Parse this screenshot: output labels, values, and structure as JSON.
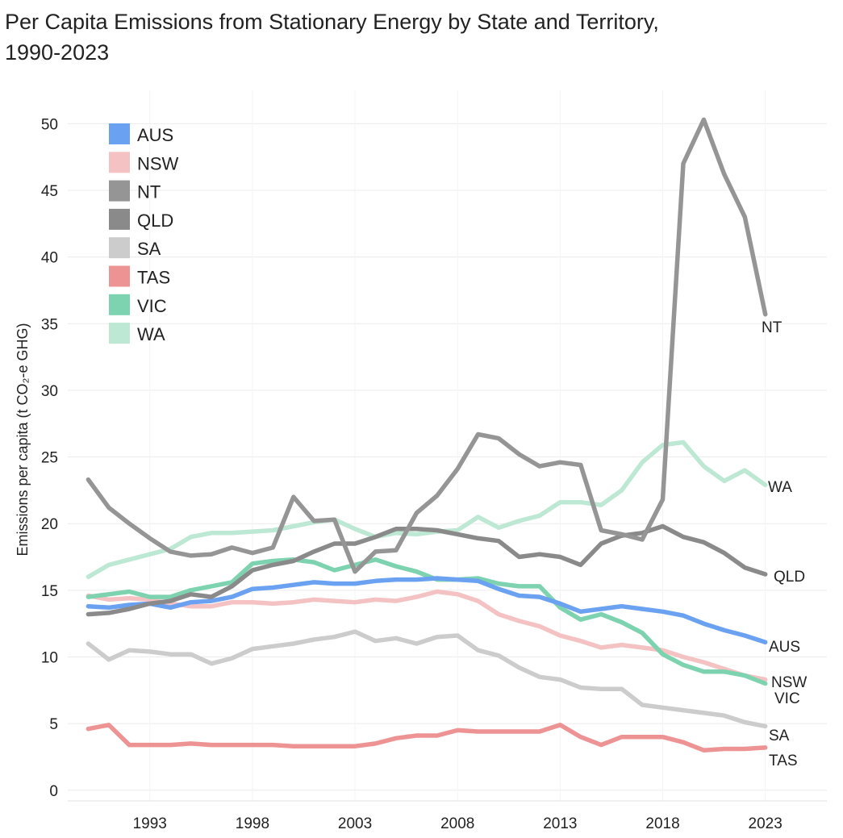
{
  "chart_data": {
    "type": "line",
    "title_line1": "Per Capita Emissions from Stationary Energy by State and Territory,",
    "title_line2": "1990-2023",
    "ylabel": "Emissions per capita (t CO₂-e GHG)",
    "xlabel": "",
    "xlim": [
      1989,
      2026
    ],
    "ylim": [
      -0.8,
      52.5
    ],
    "x_ticks": [
      1993,
      1998,
      2003,
      2008,
      2013,
      2018,
      2023
    ],
    "y_ticks": [
      0,
      5,
      10,
      15,
      20,
      25,
      30,
      35,
      40,
      45,
      50
    ],
    "grid": true,
    "legend_position": "top-left",
    "x": [
      1990,
      1991,
      1992,
      1993,
      1994,
      1995,
      1996,
      1997,
      1998,
      1999,
      2000,
      2001,
      2002,
      2003,
      2004,
      2005,
      2006,
      2007,
      2008,
      2009,
      2010,
      2011,
      2012,
      2013,
      2014,
      2015,
      2016,
      2017,
      2018,
      2019,
      2020,
      2021,
      2022,
      2023
    ],
    "series": [
      {
        "name": "AUS",
        "color": "#6aa1f0",
        "end_label": "AUS",
        "values": [
          13.8,
          13.7,
          13.9,
          14.0,
          13.7,
          14.1,
          14.2,
          14.5,
          15.1,
          15.2,
          15.4,
          15.6,
          15.5,
          15.5,
          15.7,
          15.8,
          15.8,
          15.9,
          15.8,
          15.7,
          15.1,
          14.6,
          14.5,
          14.0,
          13.4,
          13.6,
          13.8,
          13.6,
          13.4,
          13.1,
          12.5,
          12.0,
          11.6,
          11.1
        ]
      },
      {
        "name": "NSW",
        "color": "#f4c2c2",
        "end_label": "NSW",
        "values": [
          14.6,
          14.3,
          14.4,
          14.3,
          14.0,
          13.8,
          13.8,
          14.1,
          14.1,
          14.0,
          14.1,
          14.3,
          14.2,
          14.1,
          14.3,
          14.2,
          14.5,
          14.9,
          14.7,
          14.2,
          13.2,
          12.7,
          12.3,
          11.6,
          11.2,
          10.7,
          10.9,
          10.7,
          10.5,
          10.0,
          9.6,
          9.1,
          8.6,
          8.3
        ]
      },
      {
        "name": "NT",
        "color": "#959595",
        "end_label": "NT",
        "values": [
          23.3,
          21.2,
          20.0,
          18.9,
          17.9,
          17.6,
          17.7,
          18.2,
          17.8,
          18.2,
          22.0,
          20.2,
          20.3,
          16.4,
          17.9,
          18.0,
          20.8,
          22.1,
          24.1,
          26.7,
          26.4,
          25.2,
          24.3,
          24.6,
          24.4,
          19.5,
          19.2,
          18.8,
          21.8,
          47.0,
          50.3,
          46.2,
          43.0,
          35.7
        ]
      },
      {
        "name": "QLD",
        "color": "#8a8a8a",
        "end_label": "QLD",
        "values": [
          13.2,
          13.3,
          13.6,
          14.0,
          14.2,
          14.7,
          14.5,
          15.3,
          16.5,
          16.9,
          17.2,
          17.9,
          18.5,
          18.5,
          19.0,
          19.6,
          19.6,
          19.5,
          19.2,
          18.9,
          18.7,
          17.5,
          17.7,
          17.5,
          16.9,
          18.5,
          19.1,
          19.3,
          19.8,
          19.0,
          18.6,
          17.8,
          16.7,
          16.2
        ]
      },
      {
        "name": "SA",
        "color": "#cccccc",
        "end_label": "SA",
        "values": [
          11.0,
          9.8,
          10.5,
          10.4,
          10.2,
          10.2,
          9.5,
          9.9,
          10.6,
          10.8,
          11.0,
          11.3,
          11.5,
          11.9,
          11.2,
          11.4,
          11.0,
          11.5,
          11.6,
          10.5,
          10.1,
          9.2,
          8.5,
          8.3,
          7.7,
          7.6,
          7.6,
          6.4,
          6.2,
          6.0,
          5.8,
          5.6,
          5.1,
          4.8
        ]
      },
      {
        "name": "TAS",
        "color": "#ee9393",
        "end_label": "TAS",
        "values": [
          4.6,
          4.9,
          3.4,
          3.4,
          3.4,
          3.5,
          3.4,
          3.4,
          3.4,
          3.4,
          3.3,
          3.3,
          3.3,
          3.3,
          3.5,
          3.9,
          4.1,
          4.1,
          4.5,
          4.4,
          4.4,
          4.4,
          4.4,
          4.9,
          4.0,
          3.4,
          4.0,
          4.0,
          4.0,
          3.6,
          3.0,
          3.1,
          3.1,
          3.2
        ]
      },
      {
        "name": "VIC",
        "color": "#7dd3af",
        "end_label": "VIC",
        "values": [
          14.5,
          14.7,
          14.9,
          14.5,
          14.5,
          15.0,
          15.3,
          15.6,
          17.0,
          17.2,
          17.3,
          17.1,
          16.5,
          16.9,
          17.3,
          16.8,
          16.4,
          15.8,
          15.8,
          15.9,
          15.5,
          15.3,
          15.3,
          13.7,
          12.8,
          13.2,
          12.6,
          11.8,
          10.2,
          9.4,
          8.9,
          8.9,
          8.6,
          8.0
        ]
      },
      {
        "name": "WA",
        "color": "#bde8d4",
        "end_label": "WA",
        "values": [
          16.0,
          16.9,
          17.3,
          17.7,
          18.1,
          19.0,
          19.3,
          19.3,
          19.4,
          19.5,
          19.8,
          20.1,
          20.3,
          19.6,
          19.0,
          19.3,
          19.2,
          19.4,
          19.5,
          20.5,
          19.7,
          20.2,
          20.6,
          21.6,
          21.6,
          21.4,
          22.5,
          24.6,
          25.9,
          26.1,
          24.3,
          23.2,
          24.0,
          22.9
        ]
      }
    ]
  }
}
